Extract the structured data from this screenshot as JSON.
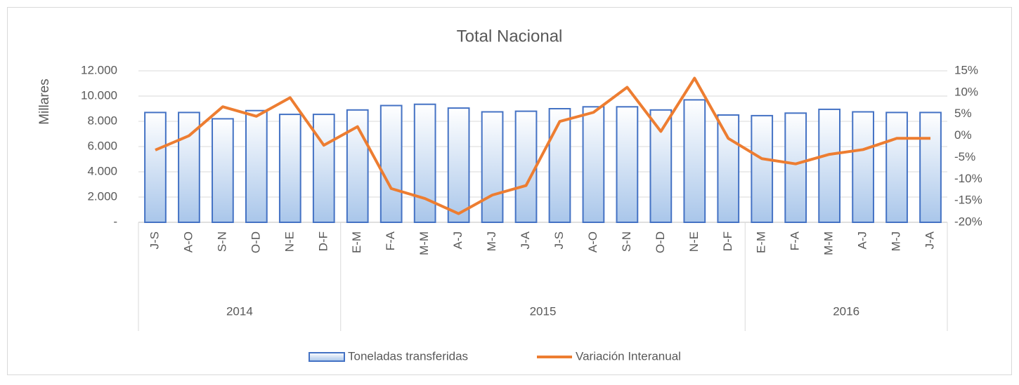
{
  "chart_data": {
    "type": "bar_line",
    "title": "Total Nacional",
    "y_label": "Millares",
    "groups": [
      {
        "name": "2014",
        "categories": [
          "J-S",
          "A-O",
          "S-N",
          "O-D",
          "N-E",
          "D-F"
        ]
      },
      {
        "name": "2015",
        "categories": [
          "E-M",
          "F-A",
          "M-M",
          "A-J",
          "M-J",
          "J-A",
          "J-S",
          "A-O",
          "S-N",
          "O-D",
          "N-E",
          "D-F"
        ]
      },
      {
        "name": "2016",
        "categories": [
          "E-M",
          "F-A",
          "M-M",
          "A-J",
          "M-J",
          "J-A"
        ]
      }
    ],
    "series": [
      {
        "name": "Toneladas transferidas",
        "color": "#4472c4",
        "values": [
          8700,
          8700,
          8200,
          8850,
          8550,
          8550,
          8900,
          9250,
          9350,
          9050,
          8750,
          8800,
          9000,
          9150,
          9150,
          8900,
          9700,
          8500,
          8450,
          8650,
          8950,
          8750,
          8700,
          8700
        ]
      },
      {
        "name": "Variación Interanual",
        "color": "#ed7d31",
        "axis": "y2",
        "values": [
          -3.3,
          0,
          6.7,
          4.5,
          8.8,
          -2.2,
          2.1,
          -12.2,
          -14.5,
          -18,
          -13.7,
          -11.5,
          3.3,
          5.4,
          11.2,
          1.0,
          13.3,
          -0.6,
          -5.3,
          -6.5,
          -4.3,
          -3.2,
          -0.6,
          -0.6
        ]
      }
    ],
    "ylim": [
      0,
      12000
    ],
    "yticks": [
      {
        "value": 0,
        "label": "-"
      },
      {
        "value": 2000,
        "label": "2.000"
      },
      {
        "value": 4000,
        "label": "4.000"
      },
      {
        "value": 6000,
        "label": "6.000"
      },
      {
        "value": 8000,
        "label": "8.000"
      },
      {
        "value": 10000,
        "label": "10.000"
      },
      {
        "value": 12000,
        "label": "12.000"
      }
    ],
    "y2lim": [
      -20,
      15
    ],
    "y2ticks": [
      {
        "value": -20,
        "label": "-20%"
      },
      {
        "value": -15,
        "label": "-15%"
      },
      {
        "value": -10,
        "label": "-10%"
      },
      {
        "value": -5,
        "label": "-5%"
      },
      {
        "value": 0,
        "label": "0%"
      },
      {
        "value": 5,
        "label": "5%"
      },
      {
        "value": 10,
        "label": "10%"
      },
      {
        "value": 15,
        "label": "15%"
      }
    ],
    "grid": true,
    "legend": "bottom"
  }
}
